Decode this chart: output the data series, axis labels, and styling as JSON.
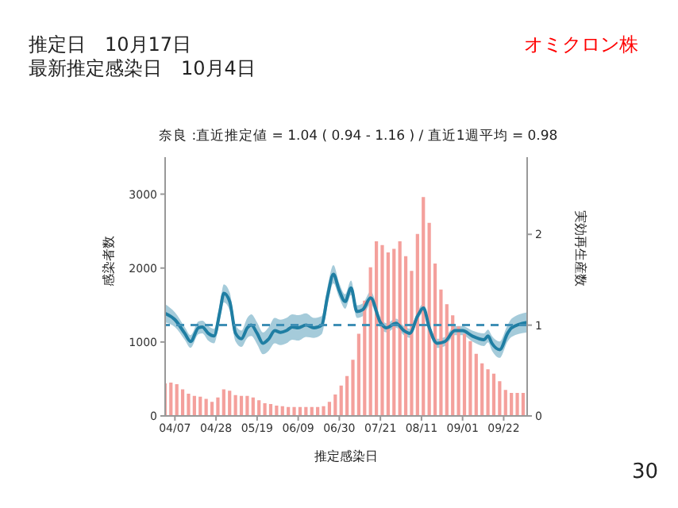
{
  "chart_data": {
    "type": "bar",
    "title": "奈良 :直近推定値 = 1.04 ( 0.94 - 1.16 ) / 直近1週平均 = 0.98",
    "annotations": [
      "推定日　10月17日",
      "最新推定感染日　10月4日",
      "オミクロン株",
      "30"
    ],
    "xlabel": "推定感染日",
    "ylabel": "感染者数",
    "y2label": "実効再生産数",
    "xlim": [
      "--04-02",
      "--10-04"
    ],
    "xticks": [
      {
        "value": "--04-07",
        "label": "04/07"
      },
      {
        "value": "--04-28",
        "label": "04/28"
      },
      {
        "value": "--05-19",
        "label": "05/19"
      },
      {
        "value": "--06-09",
        "label": "06/09"
      },
      {
        "value": "--06-30",
        "label": "06/30"
      },
      {
        "value": "--07-21",
        "label": "07/21"
      },
      {
        "value": "--08-11",
        "label": "08/11"
      },
      {
        "value": "--09-01",
        "label": "09/01"
      },
      {
        "value": "--09-22",
        "label": "09/22"
      }
    ],
    "ylim": [
      0,
      3500
    ],
    "yticks": [
      0,
      1000,
      2000,
      3000
    ],
    "y2lim": [
      0,
      2.85
    ],
    "y2ticks": [
      0,
      1,
      2
    ],
    "grid": false,
    "legend": false,
    "ref_lines": [
      {
        "axis": "y2",
        "value": 1,
        "label": null,
        "color": "#3f8fb5",
        "line_style": "dashed"
      }
    ],
    "series": [
      {
        "color": "#f4a09c",
        "x": [
          "--04-02",
          "--04-05",
          "--04-08",
          "--04-11",
          "--04-14",
          "--04-17",
          "--04-20",
          "--04-23",
          "--04-26",
          "--04-29",
          "--05-02",
          "--05-05",
          "--05-08",
          "--05-11",
          "--05-14",
          "--05-17",
          "--05-20",
          "--05-23",
          "--05-26",
          "--05-29",
          "--06-01",
          "--06-04",
          "--06-07",
          "--06-10",
          "--06-13",
          "--06-16",
          "--06-19",
          "--06-22",
          "--06-25",
          "--06-28",
          "--07-01",
          "--07-04",
          "--07-07",
          "--07-10",
          "--07-13",
          "--07-16",
          "--07-19",
          "--07-22",
          "--07-25",
          "--07-28",
          "--07-31",
          "--08-03",
          "--08-06",
          "--08-09",
          "--08-12",
          "--08-15",
          "--08-18",
          "--08-21",
          "--08-24",
          "--08-27",
          "--08-30",
          "--09-02",
          "--09-05",
          "--09-08",
          "--09-11",
          "--09-14",
          "--09-17",
          "--09-20",
          "--09-23",
          "--09-26",
          "--09-29",
          "--10-02"
        ],
        "values": [
          430,
          440,
          420,
          350,
          290,
          260,
          250,
          220,
          180,
          240,
          350,
          330,
          270,
          260,
          260,
          240,
          200,
          160,
          150,
          130,
          120,
          110,
          110,
          110,
          110,
          110,
          110,
          120,
          180,
          280,
          400,
          530,
          750,
          1100,
          1550,
          2000,
          2350,
          2300,
          2200,
          2250,
          2350,
          2150,
          1950,
          2450,
          2950,
          2600,
          2050,
          1700,
          1500,
          1350,
          1200,
          1100,
          1000,
          830,
          700,
          620,
          560,
          460,
          340,
          300,
          300,
          300
        ]
      },
      {
        "type": "line",
        "axis": "y2",
        "color": "#1f7ea3",
        "x": [
          "--04-02",
          "--04-07",
          "--04-12",
          "--04-15",
          "--04-19",
          "--04-21",
          "--04-24",
          "--04-27",
          "--04-30",
          "--05-02",
          "--05-05",
          "--05-08",
          "--05-11",
          "--05-14",
          "--05-16",
          "--05-19",
          "--05-22",
          "--05-25",
          "--05-28",
          "--05-31",
          "--06-03",
          "--06-06",
          "--06-09",
          "--06-13",
          "--06-17",
          "--06-21",
          "--06-24",
          "--06-27",
          "--06-30",
          "--07-03",
          "--07-06",
          "--07-09",
          "--07-12",
          "--07-16",
          "--07-21",
          "--07-24",
          "--07-29",
          "--08-02",
          "--08-05",
          "--08-09",
          "--08-12",
          "--08-15",
          "--08-19",
          "--08-23",
          "--08-28",
          "--09-01",
          "--09-06",
          "--09-12",
          "--09-14",
          "--09-16",
          "--09-20",
          "--09-24",
          "--09-26",
          "--10-04"
        ],
        "values": [
          1.13,
          1.06,
          0.91,
          0.82,
          0.97,
          0.98,
          0.91,
          0.88,
          1.15,
          1.35,
          1.26,
          0.91,
          0.85,
          0.97,
          1.0,
          0.91,
          0.8,
          0.85,
          0.94,
          0.92,
          0.94,
          0.98,
          0.97,
          1.0,
          0.97,
          1.0,
          1.32,
          1.56,
          1.38,
          1.26,
          1.41,
          1.15,
          1.17,
          1.3,
          1.03,
          0.97,
          1.02,
          0.94,
          0.91,
          1.1,
          1.19,
          0.97,
          0.8,
          0.82,
          0.94,
          0.94,
          0.88,
          0.84,
          0.88,
          0.8,
          0.73,
          0.91,
          0.97,
          1.03
        ],
        "lower": [
          1.03,
          0.98,
          0.84,
          0.75,
          0.9,
          0.91,
          0.83,
          0.8,
          1.06,
          1.25,
          1.16,
          0.82,
          0.76,
          0.86,
          0.88,
          0.79,
          0.68,
          0.72,
          0.8,
          0.78,
          0.8,
          0.84,
          0.83,
          0.87,
          0.86,
          0.9,
          1.22,
          1.46,
          1.3,
          1.18,
          1.33,
          1.08,
          1.1,
          1.23,
          0.97,
          0.92,
          0.97,
          0.89,
          0.86,
          1.05,
          1.14,
          0.92,
          0.75,
          0.77,
          0.89,
          0.89,
          0.82,
          0.77,
          0.81,
          0.72,
          0.64,
          0.82,
          0.87,
          0.92
        ],
        "upper": [
          1.23,
          1.14,
          0.98,
          0.89,
          1.04,
          1.05,
          0.99,
          0.96,
          1.24,
          1.45,
          1.36,
          1.0,
          0.94,
          1.08,
          1.12,
          1.03,
          0.92,
          0.98,
          1.08,
          1.06,
          1.08,
          1.12,
          1.11,
          1.13,
          1.08,
          1.1,
          1.42,
          1.66,
          1.46,
          1.34,
          1.49,
          1.22,
          1.24,
          1.37,
          1.09,
          1.02,
          1.07,
          0.99,
          0.96,
          1.15,
          1.24,
          1.02,
          0.85,
          0.87,
          0.99,
          0.99,
          0.94,
          0.91,
          0.95,
          0.88,
          0.82,
          1.0,
          1.07,
          1.14
        ]
      }
    ]
  }
}
